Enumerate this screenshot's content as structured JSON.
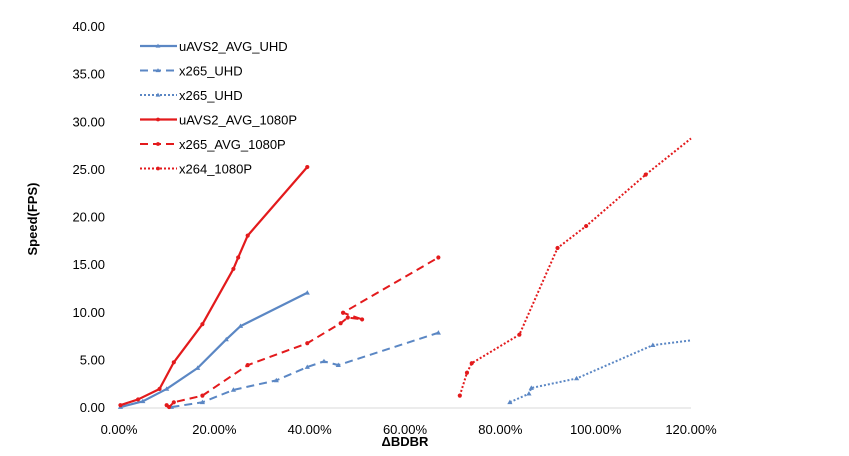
{
  "chart_data": {
    "type": "line",
    "title": "",
    "xlabel": "ΔBDBR",
    "ylabel": "Speed(FPS)",
    "xlim": [
      0,
      120
    ],
    "ylim": [
      0,
      40
    ],
    "x_ticks": [
      "0.00%",
      "20.00%",
      "40.00%",
      "60.00%",
      "80.00%",
      "100.00%",
      "120.00%"
    ],
    "y_ticks": [
      "0.00",
      "5.00",
      "10.00",
      "15.00",
      "20.00",
      "25.00",
      "30.00",
      "35.00",
      "40.00"
    ],
    "grid": false,
    "legend_position": "top-left",
    "series": [
      {
        "name": "uAVS2_AVG_UHD",
        "color": "#5b87c4",
        "dash": "solid",
        "marker": "triangle",
        "points": [
          [
            0.3,
            0.1
          ],
          [
            5,
            0.7
          ],
          [
            10,
            2.0
          ],
          [
            16.5,
            4.2
          ],
          [
            22.5,
            7.2
          ],
          [
            25.5,
            8.6
          ],
          [
            39.5,
            12.1
          ]
        ]
      },
      {
        "name": "x265_UHD",
        "color": "#5b87c4",
        "dash": "dashed",
        "marker": "triangle",
        "points": [
          [
            11,
            0.1
          ],
          [
            17.5,
            0.6
          ],
          [
            24,
            1.9
          ],
          [
            33,
            2.9
          ],
          [
            39.5,
            4.3
          ],
          [
            43,
            4.9
          ],
          [
            46,
            4.5
          ],
          [
            67,
            7.9
          ]
        ]
      },
      {
        "name": "x265_UHD",
        "color": "#5b87c4",
        "dash": "dotted",
        "marker": "triangle",
        "points": [
          [
            82,
            0.6
          ],
          [
            86,
            1.5
          ],
          [
            86.5,
            2.1
          ],
          [
            96,
            3.1
          ],
          [
            112,
            6.6
          ],
          [
            120,
            7.1
          ]
        ]
      },
      {
        "name": "uAVS2_AVG_1080P",
        "color": "#e31a1c",
        "dash": "solid",
        "marker": "circle",
        "points": [
          [
            0.3,
            0.3
          ],
          [
            4,
            0.9
          ],
          [
            8.5,
            2.0
          ],
          [
            11.5,
            4.8
          ],
          [
            17.5,
            8.8
          ],
          [
            24,
            14.6
          ],
          [
            25,
            15.8
          ],
          [
            27,
            18.1
          ],
          [
            39.5,
            25.3
          ]
        ]
      },
      {
        "name": "x265_AVG_1080P",
        "color": "#e31a1c",
        "dash": "dashed",
        "marker": "circle",
        "points": [
          [
            10,
            0.3
          ],
          [
            10.5,
            0.1
          ],
          [
            11.5,
            0.6
          ],
          [
            17.5,
            1.3
          ],
          [
            27,
            4.5
          ],
          [
            39.5,
            6.8
          ],
          [
            46.5,
            8.9
          ],
          [
            48,
            9.5
          ],
          [
            51,
            9.3
          ],
          [
            47,
            10.0
          ],
          [
            67,
            15.8
          ]
        ]
      },
      {
        "name": "x264_1080P",
        "color": "#e31a1c",
        "dash": "dotted",
        "marker": "circle",
        "points": [
          [
            71.5,
            1.3
          ],
          [
            73,
            3.7
          ],
          [
            74,
            4.7
          ],
          [
            84,
            7.7
          ],
          [
            92,
            16.8
          ],
          [
            98,
            19.1
          ],
          [
            110.5,
            24.5
          ],
          [
            120,
            28.3
          ]
        ]
      }
    ]
  }
}
